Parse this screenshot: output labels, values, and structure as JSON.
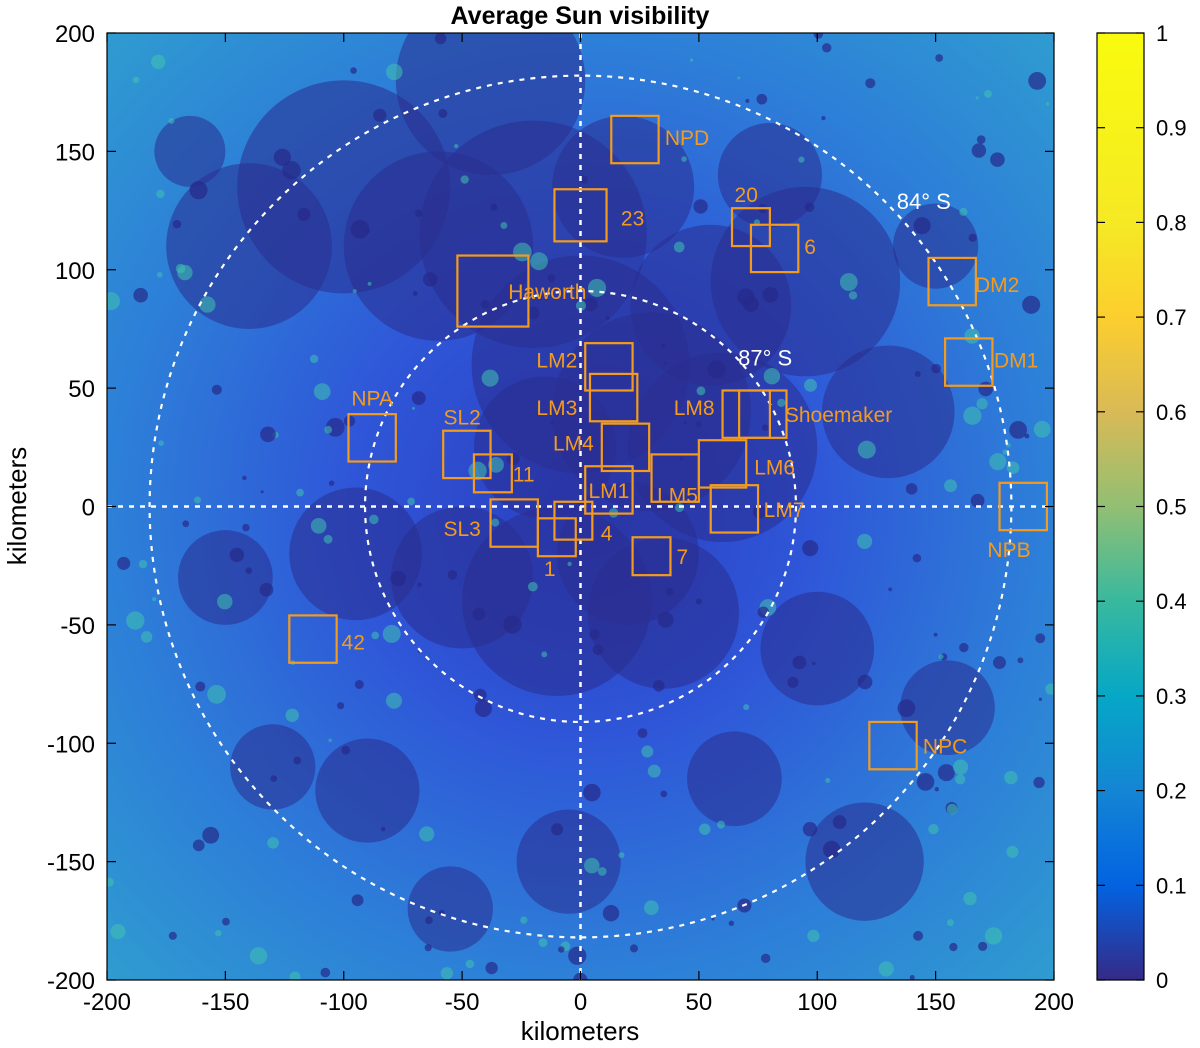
{
  "chart_data": {
    "type": "heatmap",
    "title": "Average Sun visibility",
    "xlabel": "kilometers",
    "ylabel": "kilometers",
    "xlim": [
      -200,
      200
    ],
    "ylim": [
      -200,
      200
    ],
    "xticks": [
      -200,
      -150,
      -100,
      -50,
      0,
      50,
      100,
      150,
      200
    ],
    "yticks": [
      200,
      150,
      100,
      50,
      0,
      -50,
      -100,
      -150,
      -200
    ],
    "colorbar": {
      "min": 0,
      "max": 1,
      "ticks": [
        "1",
        "0.9",
        "0.8",
        "0.7",
        "0.6",
        "0.5",
        "0.4",
        "0.3",
        "0.2",
        "0.1",
        "0"
      ],
      "tick_values": [
        1,
        0.9,
        0.8,
        0.7,
        0.6,
        0.5,
        0.4,
        0.3,
        0.2,
        0.1,
        0
      ],
      "colormap": "parula"
    },
    "latitude_circles": [
      {
        "label": "84° S",
        "radius_km": 182,
        "label_x": 145,
        "label_y": 129
      },
      {
        "label": "87° S",
        "radius_km": 91,
        "label_x": 78,
        "label_y": 63
      }
    ],
    "regions": [
      {
        "label": "NPD",
        "x": 23,
        "y": 155,
        "size": 20,
        "label_x": 45,
        "label_y": 156
      },
      {
        "label": "23",
        "x": 0,
        "y": 123,
        "size": 22,
        "label_x": 22,
        "label_y": 122
      },
      {
        "label": "20",
        "x": 72,
        "y": 118,
        "size": 16,
        "label_x": 70,
        "label_y": 132
      },
      {
        "label": "6",
        "x": 82,
        "y": 109,
        "size": 20,
        "label_x": 97,
        "label_y": 110
      },
      {
        "label": "Haworth",
        "x": -37,
        "y": 91,
        "size": 30,
        "label_x": -14,
        "label_y": 91
      },
      {
        "label": "DM2",
        "x": 157,
        "y": 95,
        "size": 20,
        "label_x": 176,
        "label_y": 94
      },
      {
        "label": "DM1",
        "x": 164,
        "y": 61,
        "size": 20,
        "label_x": 184,
        "label_y": 62
      },
      {
        "label": "LM2",
        "x": 12,
        "y": 59,
        "size": 20,
        "label_x": -10,
        "label_y": 62
      },
      {
        "label": "LM3",
        "x": 14,
        "y": 46,
        "size": 20,
        "label_x": -10,
        "label_y": 42
      },
      {
        "label": "LM8",
        "x": 70,
        "y": 39,
        "size": 20,
        "label_x": 48,
        "label_y": 42
      },
      {
        "label": "Shoemaker",
        "x": 77,
        "y": 39,
        "size": 20,
        "label_x": 109,
        "label_y": 39
      },
      {
        "label": "NPA",
        "x": -88,
        "y": 29,
        "size": 20,
        "label_x": -88,
        "label_y": 46
      },
      {
        "label": "SL2",
        "x": -48,
        "y": 22,
        "size": 20,
        "label_x": -50,
        "label_y": 38
      },
      {
        "label": "LM4",
        "x": 19,
        "y": 25,
        "size": 20,
        "label_x": -3,
        "label_y": 27
      },
      {
        "label": "LM6",
        "x": 60,
        "y": 18,
        "size": 20,
        "label_x": 82,
        "label_y": 17
      },
      {
        "label": "11",
        "x": -37,
        "y": 14,
        "size": 16,
        "label_x": -24,
        "label_y": 14
      },
      {
        "label": "LM1",
        "x": 12,
        "y": 7,
        "size": 20,
        "label_x": 12,
        "label_y": 7
      },
      {
        "label": "LM5",
        "x": 40,
        "y": 12,
        "size": 20,
        "label_x": 41,
        "label_y": 5
      },
      {
        "label": "LM7",
        "x": 65,
        "y": -1,
        "size": 20,
        "label_x": 86,
        "label_y": -1
      },
      {
        "label": "NPB",
        "x": 187,
        "y": 0,
        "size": 20,
        "label_x": 181,
        "label_y": -18
      },
      {
        "label": "SL3",
        "x": -28,
        "y": -7,
        "size": 20,
        "label_x": -50,
        "label_y": -9
      },
      {
        "label": "4",
        "x": -3,
        "y": -6,
        "size": 16,
        "label_x": 11,
        "label_y": -11
      },
      {
        "label": "1",
        "x": -10,
        "y": -13,
        "size": 16,
        "label_x": -13,
        "label_y": -26
      },
      {
        "label": "7",
        "x": 30,
        "y": -21,
        "size": 16,
        "label_x": 43,
        "label_y": -21
      },
      {
        "label": "42",
        "x": -113,
        "y": -56,
        "size": 20,
        "label_x": -96,
        "label_y": -57
      },
      {
        "label": "NPC",
        "x": 132,
        "y": -101,
        "size": 20,
        "label_x": 154,
        "label_y": -101
      }
    ]
  }
}
